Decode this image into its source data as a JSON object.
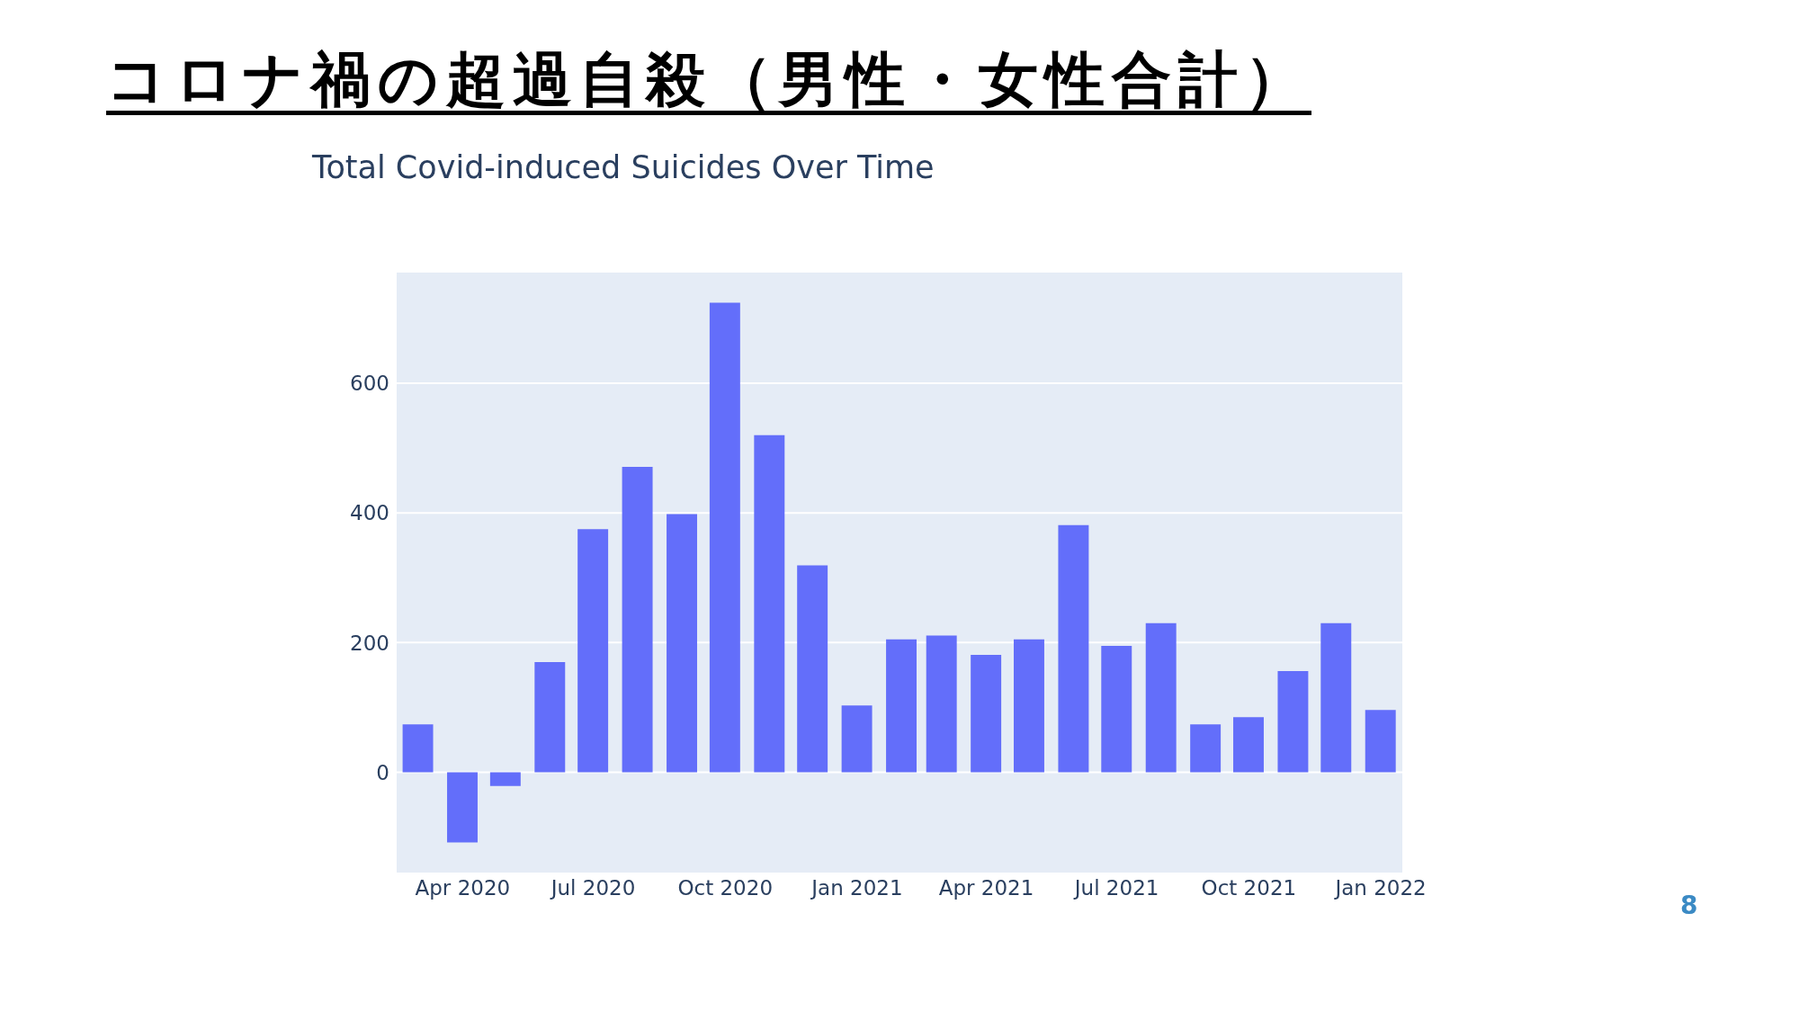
{
  "chart_data": {
    "type": "bar",
    "title": "コロナ禍の超過自殺（男性・女性合計）",
    "subtitle": "Total Covid-induced Suicides Over Time",
    "x": [
      "2020-03",
      "2020-04",
      "2020-05",
      "2020-06",
      "2020-07",
      "2020-08",
      "2020-09",
      "2020-10",
      "2020-11",
      "2020-12",
      "2021-01",
      "2021-02",
      "2021-03",
      "2021-04",
      "2021-05",
      "2021-06",
      "2021-07",
      "2021-08",
      "2021-09",
      "2021-10",
      "2021-11",
      "2021-12",
      "2022-01"
    ],
    "values": [
      74,
      -108,
      -21,
      170,
      375,
      471,
      398,
      724,
      520,
      319,
      103,
      205,
      211,
      181,
      205,
      381,
      195,
      230,
      74,
      85,
      156,
      230,
      96
    ],
    "color": "#636efa",
    "xlim": [
      "2020-02-15",
      "2022-01-16"
    ],
    "xticks": [
      {
        "value": "2020-04",
        "label": "Apr 2020"
      },
      {
        "value": "2020-07",
        "label": "Jul 2020"
      },
      {
        "value": "2020-10",
        "label": "Oct 2020"
      },
      {
        "value": "2021-01",
        "label": "Jan 2021"
      },
      {
        "value": "2021-04",
        "label": "Apr 2021"
      },
      {
        "value": "2021-07",
        "label": "Jul 2021"
      },
      {
        "value": "2021-10",
        "label": "Oct 2021"
      },
      {
        "value": "2022-01",
        "label": "Jan 2022"
      }
    ],
    "ylim": [
      -156,
      772
    ],
    "yticks": [
      0,
      200,
      400,
      600
    ],
    "grid": "y",
    "annotations": [
      "8"
    ]
  }
}
